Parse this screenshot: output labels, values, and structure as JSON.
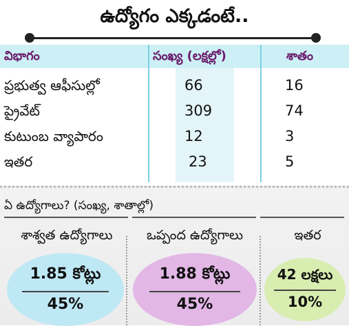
{
  "title": "ఉద్యోగం ఎక్కడంటే..",
  "table": {
    "headers": [
      "విభాగం",
      "సంఖ్య (లక్షల్లో)",
      "శాతం"
    ],
    "rows": [
      {
        "category": "ప్రభుత్వ ఆఫీసుల్లో",
        "count": "66",
        "percent": "16"
      },
      {
        "category": "ప్రైవేట్",
        "count": "309",
        "percent": "74"
      },
      {
        "category": "కుటుంబ వ్యాపారం",
        "count": "12",
        "percent": "3"
      },
      {
        "category": "ఇతర",
        "count": "23",
        "percent": "5"
      }
    ]
  },
  "summary": {
    "subtitle": "ఏ ఉద్యోగాలు? (సంఖ్య, శాతాల్లో)",
    "groups": [
      {
        "label": "శాశ్వత ఉద్యోగాలు",
        "amount": "1.85 కోట్లు",
        "percent": "45%",
        "color": "#bfe8f5"
      },
      {
        "label": "ఒప్పంద ఉద్యోగాలు",
        "amount": "1.88 కోట్లు",
        "percent": "45%",
        "color": "#e2b7e6"
      },
      {
        "label": "ఇతర",
        "amount": "42 లక్షలు",
        "percent": "10%",
        "color": "#d8edb0"
      }
    ]
  },
  "colors": {
    "header_bg": "#cdeff6",
    "header_text": "#6a1b6a"
  }
}
